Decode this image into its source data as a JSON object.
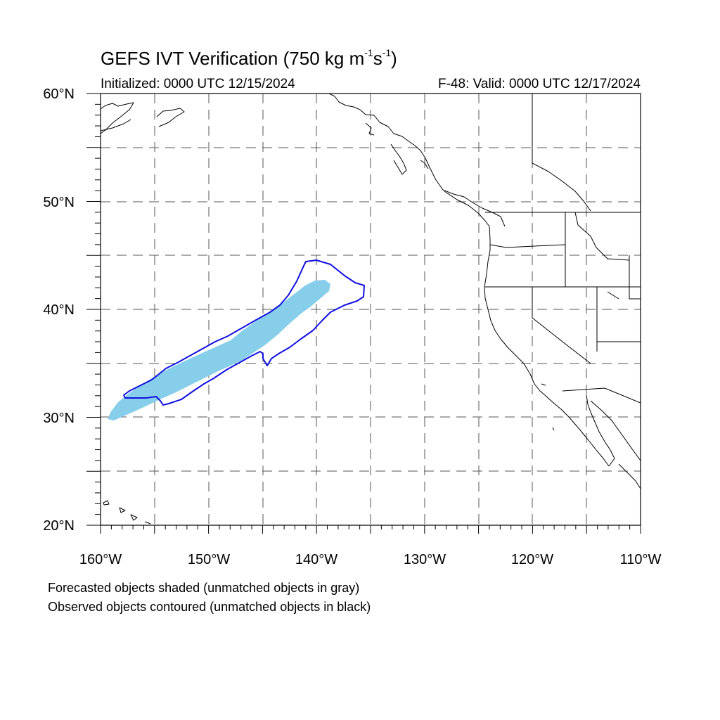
{
  "title": {
    "main": "GEFS IVT Verification (750 kg m",
    "exp1": "-1",
    "mid": "s",
    "exp2": "-1",
    "close": ")"
  },
  "subtitle_left": "Initialized: 0000 UTC 12/15/2024",
  "subtitle_right": "F-48: Valid: 0000 UTC 12/17/2024",
  "lat_labels": [
    "60°N",
    "50°N",
    "40°N",
    "30°N",
    "20°N"
  ],
  "lon_labels": [
    "160°W",
    "150°W",
    "140°W",
    "130°W",
    "120°W",
    "110°W"
  ],
  "captions": [
    "Forecasted objects shaded (unmatched objects in gray)",
    "Observed objects contoured (unmatched objects in black)"
  ],
  "map": {
    "lon_range": [
      -160,
      -110
    ],
    "lat_range": [
      20,
      60
    ],
    "grid_spacing_deg": 5,
    "grid": "dashed",
    "colors": {
      "forecast_fill": "#87CEEB",
      "observed_contour": "#1010E0",
      "coastline": "#000000",
      "grid": "#555555"
    }
  }
}
